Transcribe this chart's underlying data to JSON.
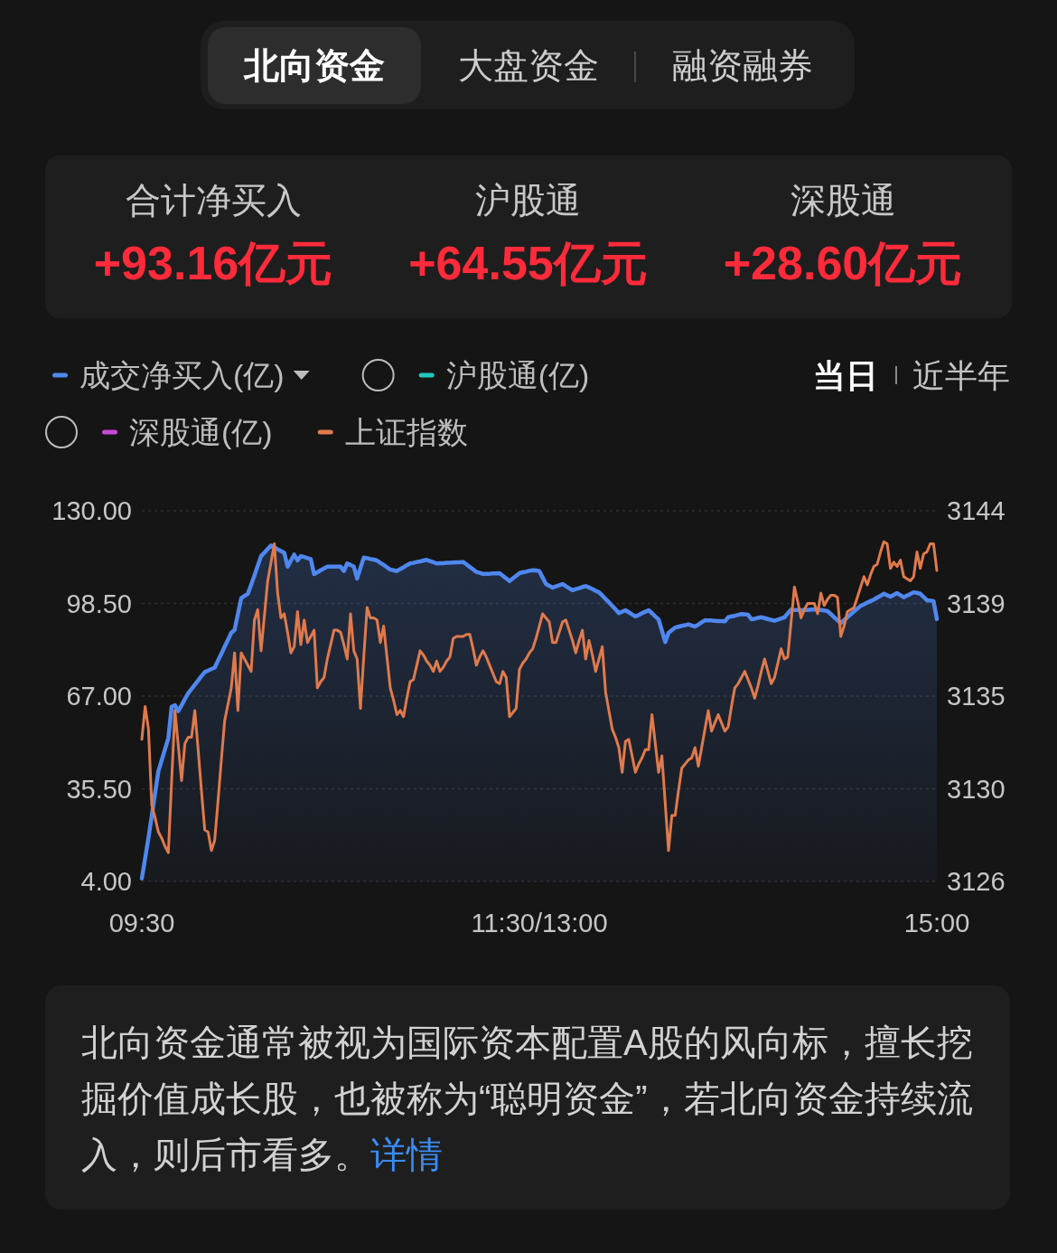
{
  "chart_data": [
    {
      "type": "other",
      "annotations": [
        "北向资金",
        "大盘资金",
        "融资融券",
        "合计净买入",
        "+93.16亿元",
        "沪股通",
        "+64.55亿元",
        "深股通",
        "+28.60亿元"
      ]
    },
    {
      "type": "line",
      "categories": [
        "09:30",
        null,
        null,
        null,
        null,
        null,
        null,
        null,
        null,
        null,
        null,
        null,
        null,
        null,
        null,
        null,
        null,
        null,
        null,
        null,
        null,
        null,
        null,
        null,
        null,
        null,
        null,
        null,
        null,
        null,
        null,
        null,
        null,
        null,
        null,
        null,
        null,
        null,
        null,
        null,
        null,
        null,
        null,
        null,
        null,
        null,
        null,
        null,
        null,
        null,
        null,
        null,
        null,
        null,
        null,
        null,
        null,
        null,
        null,
        null,
        null,
        null,
        null,
        null,
        null,
        null,
        null,
        null,
        null,
        null,
        null,
        null,
        null,
        null,
        null,
        null,
        null,
        null,
        null,
        null,
        null,
        null,
        null,
        null,
        null,
        null,
        null,
        null,
        null,
        null,
        null,
        null,
        null,
        null,
        null,
        null,
        null,
        null,
        null,
        null,
        null,
        null,
        null,
        null,
        null,
        null,
        null,
        null,
        null,
        null,
        null,
        null,
        null,
        null,
        null,
        null,
        null,
        null,
        null,
        null,
        "11:30/13:00",
        null,
        null,
        null,
        null,
        null,
        null,
        null,
        null,
        null,
        null,
        null,
        null,
        null,
        null,
        null,
        null,
        null,
        null,
        null,
        null,
        null,
        null,
        null,
        null,
        null,
        null,
        null,
        null,
        null,
        null,
        null,
        null,
        null,
        null,
        null,
        null,
        null,
        null,
        null,
        null,
        null,
        null,
        null,
        null,
        null,
        null,
        null,
        null,
        null,
        null,
        null,
        null,
        null,
        null,
        null,
        null,
        null,
        null,
        null,
        null,
        null,
        null,
        null,
        null,
        null,
        null,
        null,
        null,
        null,
        null,
        null,
        null,
        null,
        null,
        null,
        null,
        null,
        null,
        null,
        null,
        null,
        null,
        null,
        null,
        null,
        null,
        null,
        null,
        null,
        null,
        null,
        null,
        null,
        null,
        null,
        null,
        null,
        null,
        null,
        null,
        null,
        null,
        null,
        null,
        null,
        null,
        null,
        null,
        null,
        null,
        null,
        null,
        null,
        null,
        null,
        null,
        null,
        null,
        null,
        "15:00"
      ],
      "ylim": [
        4,
        130
      ],
      "yticks": [
        {
          "value": 4,
          "label": "4.00"
        },
        {
          "value": 35.5,
          "label": "35.50"
        },
        {
          "value": 67,
          "label": "67.00"
        },
        {
          "value": 98.5,
          "label": "98.50"
        },
        {
          "value": 130,
          "label": "130.00"
        }
      ],
      "y2lim": [
        3126,
        3144
      ],
      "y2ticks": [
        3126,
        {
          "value": 3130.5,
          "label": "3130"
        },
        3135,
        {
          "value": 3139.5,
          "label": "3139"
        },
        3144
      ],
      "grid": "y",
      "legend": "top",
      "annotations": [
        "当日",
        "近半年"
      ],
      "series": [
        {
          "name": "成交净买入(亿)",
          "type": "area",
          "color": "#4f87ee",
          "values": [
            5.0,
            11.9,
            18.8,
            26.4,
            34.0,
            41.5,
            45.2,
            49.0,
            52.7,
            63.4,
            63.9,
            61.9,
            63.9,
            66.0,
            68.0,
            69.4,
            70.9,
            72.3,
            73.8,
            75.2,
            75.7,
            76.2,
            76.7,
            79.1,
            81.4,
            83.8,
            86.1,
            88.5,
            89.5,
            94.9,
            100.3,
            101.1,
            101.8,
            104.9,
            108.0,
            111.3,
            114.6,
            115.8,
            117.0,
            118.2,
            117.6,
            116.9,
            116.3,
            115.7,
            111.0,
            113.1,
            115.1,
            113.1,
            114.6,
            114.3,
            113.9,
            113.6,
            108.5,
            109.1,
            109.8,
            110.4,
            111.0,
            111.0,
            111.0,
            111.0,
            111.0,
            109.5,
            112.1,
            111.6,
            111.0,
            107.0,
            110.6,
            114.1,
            113.9,
            113.6,
            113.4,
            113.1,
            112.3,
            111.6,
            110.8,
            110.0,
            109.8,
            109.5,
            110.2,
            110.8,
            111.5,
            112.1,
            112.3,
            112.6,
            112.8,
            113.1,
            113.3,
            112.9,
            112.5,
            112.1,
            112.2,
            112.2,
            112.3,
            112.3,
            112.4,
            112.5,
            112.5,
            112.6,
            111.8,
            110.9,
            110.1,
            109.2,
            108.9,
            108.5,
            108.6,
            108.6,
            108.7,
            108.7,
            108.8,
            107.9,
            107.0,
            106.1,
            107.0,
            107.9,
            108.8,
            109.1,
            109.3,
            109.6,
            109.8,
            109.7,
            109.5,
            107.3,
            105.1,
            104.5,
            103.9,
            104.3,
            104.7,
            105.1,
            104.4,
            103.7,
            103.0,
            103.4,
            103.7,
            104.1,
            104.4,
            103.9,
            103.4,
            102.8,
            102.3,
            101.2,
            100.0,
            98.9,
            97.7,
            96.5,
            95.2,
            95.7,
            96.2,
            95.5,
            94.8,
            94.1,
            94.6,
            95.2,
            95.7,
            96.2,
            95.2,
            94.1,
            93.1,
            89.3,
            85.4,
            88.5,
            89.4,
            90.3,
            90.6,
            90.9,
            91.1,
            91.4,
            91.0,
            90.6,
            91.3,
            92.1,
            92.8,
            92.7,
            92.7,
            92.6,
            92.5,
            92.5,
            92.4,
            93.8,
            94.1,
            94.3,
            94.6,
            94.9,
            94.8,
            94.7,
            93.1,
            93.3,
            93.6,
            93.8,
            93.5,
            93.2,
            92.9,
            92.6,
            93.0,
            93.4,
            93.8,
            95.1,
            96.4,
            96.3,
            96.3,
            96.2,
            96.3,
            96.3,
            96.4,
            96.4,
            96.5,
            96.3,
            96.1,
            95.9,
            94.9,
            93.8,
            92.8,
            91.8,
            92.8,
            93.8,
            94.8,
            95.8,
            96.7,
            97.7,
            98.2,
            98.8,
            99.3,
            99.8,
            100.5,
            101.1,
            101.8,
            101.3,
            100.8,
            101.4,
            102.0,
            101.3,
            100.6,
            101.2,
            101.7,
            102.3,
            102.1,
            101.8,
            100.7,
            99.6,
            99.5,
            99.3,
            93.2
          ]
        },
        {
          "name": "沪股通(亿)",
          "color": "#22c7bd",
          "values": [
            null,
            null,
            null,
            null,
            null,
            null,
            null,
            null,
            null,
            null,
            null,
            null,
            null,
            null,
            null,
            null,
            null,
            null,
            null,
            null,
            null,
            null,
            null,
            null,
            null,
            null,
            null,
            null,
            null,
            null,
            null,
            null,
            null,
            null,
            null,
            null,
            null,
            null,
            null,
            null,
            null,
            null,
            null,
            null,
            null,
            null,
            null,
            null,
            null,
            null,
            null,
            null,
            null,
            null,
            null,
            null,
            null,
            null,
            null,
            null,
            null,
            null,
            null,
            null,
            null,
            null,
            null,
            null,
            null,
            null,
            null,
            null,
            null,
            null,
            null,
            null,
            null,
            null,
            null,
            null,
            null,
            null,
            null,
            null,
            null,
            null,
            null,
            null,
            null,
            null,
            null,
            null,
            null,
            null,
            null,
            null,
            null,
            null,
            null,
            null,
            null,
            null,
            null,
            null,
            null,
            null,
            null,
            null,
            null,
            null,
            null,
            null,
            null,
            null,
            null,
            null,
            null,
            null,
            null,
            null,
            null,
            null,
            null,
            null,
            null,
            null,
            null,
            null,
            null,
            null,
            null,
            null,
            null,
            null,
            null,
            null,
            null,
            null,
            null,
            null,
            null,
            null,
            null,
            null,
            null,
            null,
            null,
            null,
            null,
            null,
            null,
            null,
            null,
            null,
            null,
            null,
            null,
            null,
            null,
            null,
            null,
            null,
            null,
            null,
            null,
            null,
            null,
            null,
            null,
            null,
            null,
            null,
            null,
            null,
            null,
            null,
            null,
            null,
            null,
            null,
            null,
            null,
            null,
            null,
            null,
            null,
            null,
            null,
            null,
            null,
            null,
            null,
            null,
            null,
            null,
            null,
            null,
            null,
            null,
            null,
            null,
            null,
            null,
            null,
            null,
            null,
            null,
            null,
            null,
            null,
            null,
            null,
            null,
            null,
            null,
            null,
            null,
            null,
            null,
            null,
            null,
            null,
            null,
            null,
            null,
            null,
            null,
            null,
            null,
            null,
            null,
            null,
            null,
            null,
            null,
            null,
            null,
            null,
            null,
            null,
            null
          ]
        },
        {
          "name": "深股通(亿)",
          "color": "#c84ad6",
          "values": [
            null,
            null,
            null,
            null,
            null,
            null,
            null,
            null,
            null,
            null,
            null,
            null,
            null,
            null,
            null,
            null,
            null,
            null,
            null,
            null,
            null,
            null,
            null,
            null,
            null,
            null,
            null,
            null,
            null,
            null,
            null,
            null,
            null,
            null,
            null,
            null,
            null,
            null,
            null,
            null,
            null,
            null,
            null,
            null,
            null,
            null,
            null,
            null,
            null,
            null,
            null,
            null,
            null,
            null,
            null,
            null,
            null,
            null,
            null,
            null,
            null,
            null,
            null,
            null,
            null,
            null,
            null,
            null,
            null,
            null,
            null,
            null,
            null,
            null,
            null,
            null,
            null,
            null,
            null,
            null,
            null,
            null,
            null,
            null,
            null,
            null,
            null,
            null,
            null,
            null,
            null,
            null,
            null,
            null,
            null,
            null,
            null,
            null,
            null,
            null,
            null,
            null,
            null,
            null,
            null,
            null,
            null,
            null,
            null,
            null,
            null,
            null,
            null,
            null,
            null,
            null,
            null,
            null,
            null,
            null,
            null,
            null,
            null,
            null,
            null,
            null,
            null,
            null,
            null,
            null,
            null,
            null,
            null,
            null,
            null,
            null,
            null,
            null,
            null,
            null,
            null,
            null,
            null,
            null,
            null,
            null,
            null,
            null,
            null,
            null,
            null,
            null,
            null,
            null,
            null,
            null,
            null,
            null,
            null,
            null,
            null,
            null,
            null,
            null,
            null,
            null,
            null,
            null,
            null,
            null,
            null,
            null,
            null,
            null,
            null,
            null,
            null,
            null,
            null,
            null,
            null,
            null,
            null,
            null,
            null,
            null,
            null,
            null,
            null,
            null,
            null,
            null,
            null,
            null,
            null,
            null,
            null,
            null,
            null,
            null,
            null,
            null,
            null,
            null,
            null,
            null,
            null,
            null,
            null,
            null,
            null,
            null,
            null,
            null,
            null,
            null,
            null,
            null,
            null,
            null,
            null,
            null,
            null,
            null,
            null,
            null,
            null,
            null,
            null,
            null,
            null,
            null,
            null,
            null,
            null,
            null,
            null,
            null,
            null,
            null,
            null
          ]
        },
        {
          "name": "上证指数",
          "type": "line",
          "axis": "y2",
          "color": "#e07a4c",
          "values": [
            3132.9,
            3134.5,
            3133.4,
            3129.7,
            3129.1,
            3128.4,
            3128.1,
            3127.7,
            3127.4,
            3130.9,
            3134.3,
            3132.6,
            3130.9,
            3132.7,
            3133.0,
            3133.0,
            3134.3,
            3132.4,
            3130.4,
            3128.5,
            3128.4,
            3127.5,
            3128.0,
            3129.9,
            3131.9,
            3133.8,
            3134.6,
            3135.4,
            3137.1,
            3134.3,
            3137.1,
            3136.8,
            3136.5,
            3136.2,
            3138.7,
            3139.2,
            3137.2,
            3138.9,
            3140.6,
            3141.5,
            3142.4,
            3140.0,
            3138.8,
            3139.0,
            3138.1,
            3137.1,
            3137.4,
            3139.1,
            3137.5,
            3138.7,
            3137.6,
            3137.9,
            3138.2,
            3135.4,
            3135.7,
            3135.9,
            3136.8,
            3137.5,
            3138.2,
            3138.2,
            3138.1,
            3137.5,
            3136.8,
            3139.0,
            3137.2,
            3136.8,
            3134.4,
            3136.9,
            3139.3,
            3138.8,
            3138.8,
            3138.7,
            3137.6,
            3138.4,
            3136.9,
            3135.4,
            3134.8,
            3134.1,
            3134.3,
            3134.0,
            3134.9,
            3135.7,
            3135.8,
            3136.5,
            3137.2,
            3137.0,
            3136.7,
            3136.5,
            3136.2,
            3136.7,
            3136.2,
            3136.4,
            3136.7,
            3136.9,
            3137.8,
            3137.9,
            3137.9,
            3137.9,
            3138.0,
            3138.0,
            3137.3,
            3136.5,
            3136.9,
            3137.2,
            3136.9,
            3136.5,
            3136.1,
            3135.7,
            3135.6,
            3136.2,
            3135.9,
            3134.0,
            3134.2,
            3134.4,
            3136.3,
            3136.6,
            3136.8,
            3137.1,
            3137.3,
            3137.8,
            3138.4,
            3139.0,
            3138.8,
            3138.6,
            3137.6,
            3137.6,
            3138.1,
            3138.6,
            3138.7,
            3138.2,
            3137.7,
            3137.1,
            3137.7,
            3138.2,
            3136.8,
            3137.7,
            3137.0,
            3136.2,
            3136.8,
            3137.4,
            3135.2,
            3134.3,
            3133.4,
            3133.0,
            3132.5,
            3131.3,
            3132.8,
            3132.9,
            3132.1,
            3131.3,
            3131.7,
            3132.0,
            3132.4,
            3132.4,
            3134.1,
            3132.7,
            3131.3,
            3132.1,
            3129.8,
            3127.5,
            3129.2,
            3129.2,
            3130.4,
            3131.5,
            3131.7,
            3131.9,
            3132.0,
            3132.5,
            3131.6,
            3132.5,
            3133.4,
            3134.3,
            3133.3,
            3133.7,
            3134.1,
            3133.7,
            3133.3,
            3133.5,
            3134.5,
            3135.4,
            3135.6,
            3135.9,
            3136.2,
            3135.8,
            3135.4,
            3134.9,
            3135.5,
            3136.2,
            3136.8,
            3136.2,
            3135.6,
            3135.9,
            3136.6,
            3137.3,
            3136.8,
            3136.9,
            3138.6,
            3140.3,
            3139.6,
            3138.8,
            3139.2,
            3139.5,
            3139.5,
            3139.5,
            3139.0,
            3140.0,
            3139.4,
            3139.7,
            3139.9,
            3139.9,
            3139.8,
            3137.9,
            3138.4,
            3139.1,
            3139.2,
            3139.3,
            3139.8,
            3140.3,
            3140.8,
            3140.4,
            3140.9,
            3141.3,
            3141.4,
            3142.0,
            3142.5,
            3142.4,
            3141.2,
            3141.5,
            3141.3,
            3141.6,
            3140.8,
            3140.7,
            3140.6,
            3140.8,
            3142.0,
            3141.2,
            3141.9,
            3142.0,
            3142.4,
            3142.4,
            3141.1
          ]
        }
      ]
    },
    {
      "type": "other",
      "annotations": [
        "北向资金通常被视为国际资本配置A股的风向标，擅长挖掘价值成长股，也被称为“聪明资金”，若北向资金持续流入，则后市看多。",
        "详情"
      ]
    }
  ]
}
